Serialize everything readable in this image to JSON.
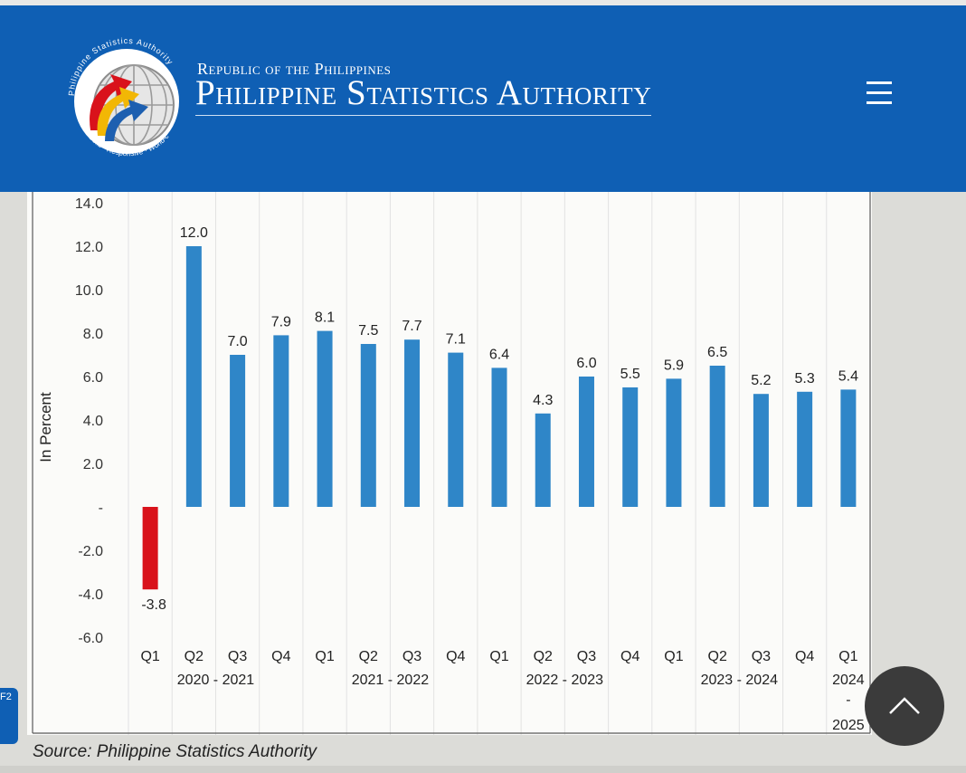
{
  "header": {
    "subtitle": "Republic of the Philippines",
    "title": "Philippine Statistics Authority",
    "logo_text": "Philippine Statistics Authority",
    "logo_motto": "Solid · Responsive · World-class",
    "background_color": "#0f5fb4"
  },
  "menu": {
    "icon": "hamburger-menu-icon"
  },
  "chart_data": {
    "type": "bar",
    "ylabel": "In Percent",
    "ylim": [
      -6.0,
      14.0
    ],
    "yticks": [
      "14.0",
      "12.0",
      "10.0",
      "8.0",
      "6.0",
      "4.0",
      "2.0",
      "-",
      "-2.0",
      "-4.0",
      "-6.0"
    ],
    "categories": [
      "Q1",
      "Q2",
      "Q3",
      "Q4",
      "Q1",
      "Q2",
      "Q3",
      "Q4",
      "Q1",
      "Q2",
      "Q3",
      "Q4",
      "Q1",
      "Q2",
      "Q3",
      "Q4",
      "Q1"
    ],
    "values": [
      -3.8,
      12.0,
      7.0,
      7.9,
      8.1,
      7.5,
      7.7,
      7.1,
      6.4,
      4.3,
      6.0,
      5.5,
      5.9,
      6.5,
      5.2,
      5.3,
      5.4
    ],
    "value_labels": [
      "-3.8",
      "12.0",
      "7.0",
      "7.9",
      "8.1",
      "7.5",
      "7.7",
      "7.1",
      "6.4",
      "4.3",
      "6.0",
      "5.5",
      "5.9",
      "6.5",
      "5.2",
      "5.3",
      "5.4"
    ],
    "groups": [
      {
        "label": "2020 - 2021",
        "start": 0,
        "end": 3
      },
      {
        "label": "2021 - 2022",
        "start": 4,
        "end": 7
      },
      {
        "label": "2022 - 2023",
        "start": 8,
        "end": 11
      },
      {
        "label": "2023 - 2024",
        "start": 12,
        "end": 15
      }
    ],
    "last_group_lines": [
      "2024",
      "-",
      "2025"
    ],
    "colors": {
      "positive": "#2f86c8",
      "negative": "#d9121b"
    },
    "grid": "vertical"
  },
  "source": "Source: Philippine Statistics Authority",
  "side_tab_label": "F2",
  "scroll_top": {
    "icon": "chevron-up-icon"
  }
}
